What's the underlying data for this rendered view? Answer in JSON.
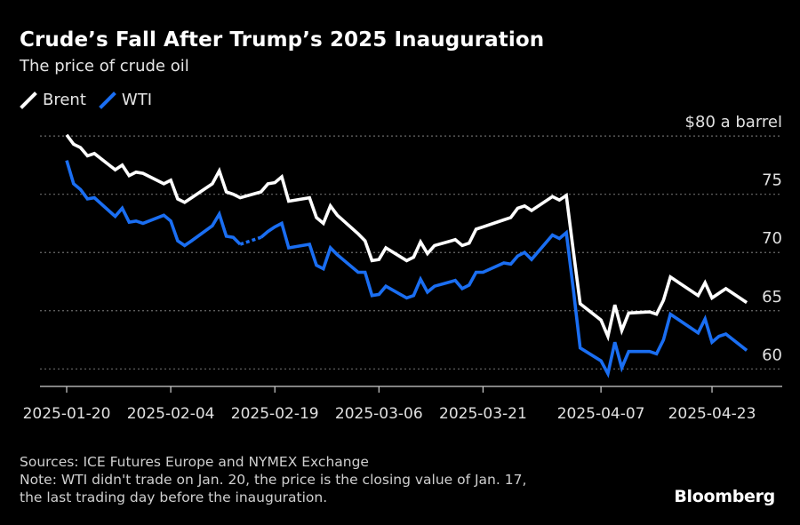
{
  "title": "Crude’s Fall After Trump’s 2025 Inauguration",
  "subtitle": "The price of crude oil",
  "legend": [
    {
      "name": "Brent",
      "color": "#ffffff"
    },
    {
      "name": "WTI",
      "color": "#1a6ef2"
    }
  ],
  "footer": {
    "sources": "Sources: ICE Futures Europe and NYMEX Exchange",
    "note_line1": "Note: WTI didn't trade on Jan. 20, the price is the closing value of Jan. 17,",
    "note_line2": "the last trading day before the inauguration."
  },
  "brand": "Bloomberg",
  "chart_data": {
    "type": "line",
    "x_ticks": [
      "2025-01-20",
      "2025-02-04",
      "2025-02-19",
      "2025-03-06",
      "2025-03-21",
      "2025-04-07",
      "2025-04-23"
    ],
    "y_ticks": [
      60,
      65,
      70,
      75,
      80
    ],
    "y_tick_labels": [
      "60",
      "65",
      "70",
      "75",
      "$80 a barrel"
    ],
    "ylim": [
      58.5,
      81
    ],
    "grid": true,
    "legend_position": "top-left",
    "series": [
      {
        "name": "Brent",
        "color": "#ffffff",
        "dashed_x": [],
        "points": [
          [
            "2025-01-20",
            80.1
          ],
          [
            "2025-01-21",
            79.3
          ],
          [
            "2025-01-22",
            79.0
          ],
          [
            "2025-01-23",
            78.3
          ],
          [
            "2025-01-24",
            78.5
          ],
          [
            "2025-01-27",
            77.1
          ],
          [
            "2025-01-28",
            77.5
          ],
          [
            "2025-01-29",
            76.6
          ],
          [
            "2025-01-30",
            76.9
          ],
          [
            "2025-01-31",
            76.8
          ],
          [
            "2025-02-03",
            75.9
          ],
          [
            "2025-02-04",
            76.2
          ],
          [
            "2025-02-05",
            74.6
          ],
          [
            "2025-02-06",
            74.3
          ],
          [
            "2025-02-07",
            74.7
          ],
          [
            "2025-02-10",
            75.9
          ],
          [
            "2025-02-11",
            77.0
          ],
          [
            "2025-02-12",
            75.2
          ],
          [
            "2025-02-13",
            75.0
          ],
          [
            "2025-02-14",
            74.7
          ],
          [
            "2025-02-17",
            75.2
          ],
          [
            "2025-02-18",
            75.9
          ],
          [
            "2025-02-19",
            76.0
          ],
          [
            "2025-02-20",
            76.5
          ],
          [
            "2025-02-21",
            74.4
          ],
          [
            "2025-02-24",
            74.7
          ],
          [
            "2025-02-25",
            73.0
          ],
          [
            "2025-02-26",
            72.5
          ],
          [
            "2025-02-27",
            74.0
          ],
          [
            "2025-02-28",
            73.2
          ],
          [
            "2025-03-03",
            71.6
          ],
          [
            "2025-03-04",
            71.0
          ],
          [
            "2025-03-05",
            69.3
          ],
          [
            "2025-03-06",
            69.4
          ],
          [
            "2025-03-07",
            70.4
          ],
          [
            "2025-03-10",
            69.3
          ],
          [
            "2025-03-11",
            69.6
          ],
          [
            "2025-03-12",
            70.9
          ],
          [
            "2025-03-13",
            69.9
          ],
          [
            "2025-03-14",
            70.6
          ],
          [
            "2025-03-17",
            71.1
          ],
          [
            "2025-03-18",
            70.6
          ],
          [
            "2025-03-19",
            70.8
          ],
          [
            "2025-03-20",
            72.0
          ],
          [
            "2025-03-21",
            72.2
          ],
          [
            "2025-03-24",
            72.8
          ],
          [
            "2025-03-25",
            73.0
          ],
          [
            "2025-03-26",
            73.8
          ],
          [
            "2025-03-27",
            74.0
          ],
          [
            "2025-03-28",
            73.6
          ],
          [
            "2025-03-31",
            74.8
          ],
          [
            "2025-04-01",
            74.5
          ],
          [
            "2025-04-02",
            74.9
          ],
          [
            "2025-04-03",
            70.2
          ],
          [
            "2025-04-04",
            65.6
          ],
          [
            "2025-04-07",
            64.2
          ],
          [
            "2025-04-08",
            62.8
          ],
          [
            "2025-04-09",
            65.5
          ],
          [
            "2025-04-10",
            63.3
          ],
          [
            "2025-04-11",
            64.8
          ],
          [
            "2025-04-14",
            64.9
          ],
          [
            "2025-04-15",
            64.7
          ],
          [
            "2025-04-16",
            65.9
          ],
          [
            "2025-04-17",
            67.9
          ],
          [
            "2025-04-21",
            66.3
          ],
          [
            "2025-04-22",
            67.4
          ],
          [
            "2025-04-23",
            66.1
          ],
          [
            "2025-04-24",
            66.5
          ],
          [
            "2025-04-25",
            66.9
          ],
          [
            "2025-04-28",
            65.7
          ]
        ]
      },
      {
        "name": "WTI",
        "color": "#1a6ef2",
        "dashed_x": [
          "2025-02-17"
        ],
        "points": [
          [
            "2025-01-20",
            77.9
          ],
          [
            "2025-01-21",
            75.9
          ],
          [
            "2025-01-22",
            75.4
          ],
          [
            "2025-01-23",
            74.6
          ],
          [
            "2025-01-24",
            74.7
          ],
          [
            "2025-01-27",
            73.1
          ],
          [
            "2025-01-28",
            73.8
          ],
          [
            "2025-01-29",
            72.6
          ],
          [
            "2025-01-30",
            72.7
          ],
          [
            "2025-01-31",
            72.5
          ],
          [
            "2025-02-03",
            73.2
          ],
          [
            "2025-02-04",
            72.7
          ],
          [
            "2025-02-05",
            71.0
          ],
          [
            "2025-02-06",
            70.6
          ],
          [
            "2025-02-07",
            71.0
          ],
          [
            "2025-02-10",
            72.3
          ],
          [
            "2025-02-11",
            73.3
          ],
          [
            "2025-02-12",
            71.4
          ],
          [
            "2025-02-13",
            71.3
          ],
          [
            "2025-02-14",
            70.7
          ],
          [
            "2025-02-17",
            71.3
          ],
          [
            "2025-02-18",
            71.8
          ],
          [
            "2025-02-19",
            72.2
          ],
          [
            "2025-02-20",
            72.5
          ],
          [
            "2025-02-21",
            70.4
          ],
          [
            "2025-02-24",
            70.7
          ],
          [
            "2025-02-25",
            68.9
          ],
          [
            "2025-02-26",
            68.6
          ],
          [
            "2025-02-27",
            70.4
          ],
          [
            "2025-02-28",
            69.8
          ],
          [
            "2025-03-03",
            68.3
          ],
          [
            "2025-03-04",
            68.3
          ],
          [
            "2025-03-05",
            66.3
          ],
          [
            "2025-03-06",
            66.4
          ],
          [
            "2025-03-07",
            67.1
          ],
          [
            "2025-03-10",
            66.1
          ],
          [
            "2025-03-11",
            66.3
          ],
          [
            "2025-03-12",
            67.7
          ],
          [
            "2025-03-13",
            66.6
          ],
          [
            "2025-03-14",
            67.1
          ],
          [
            "2025-03-17",
            67.6
          ],
          [
            "2025-03-18",
            66.9
          ],
          [
            "2025-03-19",
            67.2
          ],
          [
            "2025-03-20",
            68.3
          ],
          [
            "2025-03-21",
            68.3
          ],
          [
            "2025-03-24",
            69.1
          ],
          [
            "2025-03-25",
            69.0
          ],
          [
            "2025-03-26",
            69.7
          ],
          [
            "2025-03-27",
            70.0
          ],
          [
            "2025-03-28",
            69.4
          ],
          [
            "2025-03-31",
            71.5
          ],
          [
            "2025-04-01",
            71.2
          ],
          [
            "2025-04-02",
            71.7
          ],
          [
            "2025-04-03",
            66.9
          ],
          [
            "2025-04-04",
            61.8
          ],
          [
            "2025-04-07",
            60.7
          ],
          [
            "2025-04-08",
            59.6
          ],
          [
            "2025-04-09",
            62.3
          ],
          [
            "2025-04-10",
            60.1
          ],
          [
            "2025-04-11",
            61.5
          ],
          [
            "2025-04-14",
            61.5
          ],
          [
            "2025-04-15",
            61.3
          ],
          [
            "2025-04-16",
            62.5
          ],
          [
            "2025-04-17",
            64.7
          ],
          [
            "2025-04-21",
            63.1
          ],
          [
            "2025-04-22",
            64.3
          ],
          [
            "2025-04-23",
            62.3
          ],
          [
            "2025-04-24",
            62.8
          ],
          [
            "2025-04-25",
            63.0
          ],
          [
            "2025-04-28",
            61.6
          ]
        ]
      }
    ]
  }
}
